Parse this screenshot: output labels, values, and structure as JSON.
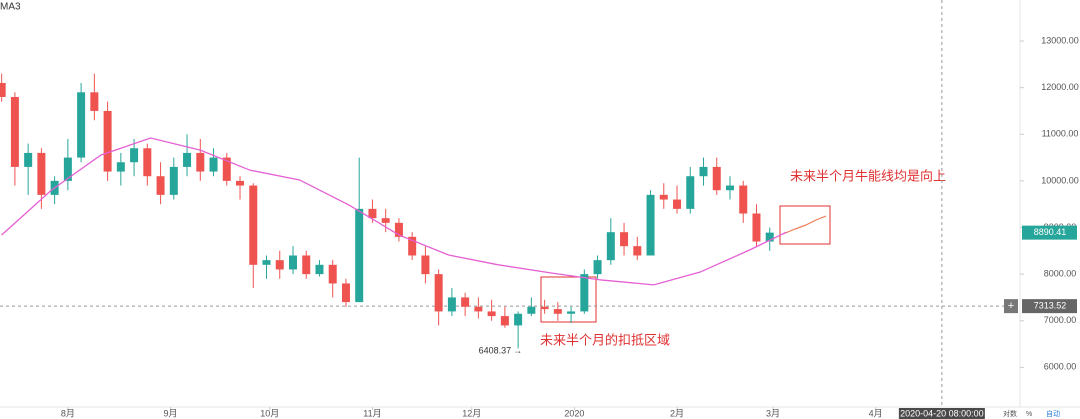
{
  "chart_data": {
    "type": "candlestick",
    "indicator": "MA3",
    "xlim": [
      -20.5,
      287.6
    ],
    "ylim": [
      5150,
      13880
    ],
    "xticks": [
      {
        "value": 0,
        "label": "8月"
      },
      {
        "value": 31,
        "label": "9月"
      },
      {
        "value": 61,
        "label": "10月"
      },
      {
        "value": 92,
        "label": "11月"
      },
      {
        "value": 122,
        "label": "12月"
      },
      {
        "value": 153,
        "label": "2020"
      },
      {
        "value": 184,
        "label": "2月"
      },
      {
        "value": 213,
        "label": "3月"
      },
      {
        "value": 244,
        "label": "4月"
      }
    ],
    "yticks": [
      {
        "value": 6000,
        "label": "6000.00"
      },
      {
        "value": 7000,
        "label": "7000.00"
      },
      {
        "value": 8000,
        "label": "8000.00"
      },
      {
        "value": 9000,
        "label": "9000.00"
      },
      {
        "value": 10000,
        "label": "10000.00"
      },
      {
        "value": 11000,
        "label": "11000.00"
      },
      {
        "value": 12000,
        "label": "12000.00"
      },
      {
        "value": 13000,
        "label": "13000.00"
      }
    ],
    "up_color": "#26a69a",
    "down_color": "#ef5350",
    "x": [
      -20,
      -16,
      -12,
      -8,
      -4,
      0,
      4,
      8,
      12,
      16,
      20,
      24,
      28,
      32,
      36,
      40,
      44,
      48,
      52,
      56,
      60,
      64,
      68,
      72,
      76,
      80,
      84,
      88,
      92,
      96,
      100,
      104,
      108,
      112,
      116,
      120,
      124,
      128,
      132,
      136,
      140,
      144,
      148,
      152,
      156,
      160,
      164,
      168,
      172,
      176,
      180,
      184,
      188,
      192,
      196,
      200,
      204,
      208,
      212
    ],
    "ohlc": [
      [
        12100,
        12300,
        11700,
        11800
      ],
      [
        11800,
        11900,
        9900,
        10300
      ],
      [
        10300,
        10800,
        9700,
        10600
      ],
      [
        10600,
        10700,
        9400,
        9700
      ],
      [
        9700,
        10100,
        9500,
        10000
      ],
      [
        10000,
        10900,
        9800,
        10500
      ],
      [
        10500,
        12100,
        10400,
        11900
      ],
      [
        11900,
        12300,
        11300,
        11500
      ],
      [
        11500,
        11700,
        10000,
        10200
      ],
      [
        10200,
        10600,
        9900,
        10400
      ],
      [
        10400,
        10900,
        10100,
        10700
      ],
      [
        10700,
        10800,
        9900,
        10100
      ],
      [
        10100,
        10400,
        9500,
        9700
      ],
      [
        9700,
        10500,
        9600,
        10300
      ],
      [
        10300,
        11000,
        10100,
        10600
      ],
      [
        10600,
        10900,
        10000,
        10200
      ],
      [
        10200,
        10700,
        10100,
        10500
      ],
      [
        10500,
        10600,
        9900,
        10000
      ],
      [
        10000,
        10100,
        9600,
        9900
      ],
      [
        9900,
        9950,
        7700,
        8200
      ],
      [
        8200,
        8400,
        7900,
        8300
      ],
      [
        8300,
        8500,
        7900,
        8100
      ],
      [
        8100,
        8600,
        8000,
        8400
      ],
      [
        8400,
        8500,
        7900,
        8000
      ],
      [
        8000,
        8300,
        7950,
        8200
      ],
      [
        8200,
        8300,
        7500,
        7800
      ],
      [
        7800,
        7900,
        7300,
        7400
      ],
      [
        7400,
        10500,
        7400,
        9400
      ],
      [
        9400,
        9600,
        9100,
        9200
      ],
      [
        9200,
        9400,
        8900,
        9100
      ],
      [
        9100,
        9200,
        8700,
        8800
      ],
      [
        8800,
        8900,
        8300,
        8400
      ],
      [
        8400,
        8600,
        7800,
        8000
      ],
      [
        8000,
        8100,
        6900,
        7200
      ],
      [
        7200,
        7700,
        7100,
        7500
      ],
      [
        7500,
        7600,
        7100,
        7300
      ],
      [
        7300,
        7500,
        7050,
        7200
      ],
      [
        7200,
        7450,
        7000,
        7100
      ],
      [
        7100,
        7300,
        6850,
        6900
      ],
      [
        6900,
        7200,
        6408.37,
        7150
      ],
      [
        7150,
        7500,
        7100,
        7300
      ],
      [
        7300,
        7450,
        7150,
        7250
      ],
      [
        7250,
        7400,
        7000,
        7150
      ],
      [
        7150,
        7300,
        6950,
        7200
      ],
      [
        7200,
        8100,
        7150,
        8000
      ],
      [
        8000,
        8400,
        7900,
        8300
      ],
      [
        8300,
        9200,
        8200,
        8900
      ],
      [
        8900,
        9100,
        8400,
        8600
      ],
      [
        8600,
        8800,
        8300,
        8400
      ],
      [
        8400,
        9800,
        8400,
        9700
      ],
      [
        9700,
        9950,
        9400,
        9600
      ],
      [
        9600,
        9900,
        9300,
        9400
      ],
      [
        9400,
        10300,
        9300,
        10100
      ],
      [
        10100,
        10500,
        9900,
        10300
      ],
      [
        10300,
        10500,
        9700,
        9800
      ],
      [
        9800,
        10100,
        9600,
        9900
      ],
      [
        9900,
        10000,
        9100,
        9300
      ],
      [
        9300,
        9500,
        8600,
        8700
      ],
      [
        8700,
        9000,
        8500,
        8890.41
      ]
    ],
    "ma": {
      "color": "#e55fd4",
      "x": [
        -20,
        -5,
        10,
        25,
        40,
        55,
        70,
        85,
        100,
        115,
        130,
        146,
        161,
        177,
        191,
        206,
        217
      ],
      "values": [
        8840,
        9800,
        10555,
        10920,
        10660,
        10230,
        10020,
        9480,
        8840,
        8410,
        8200,
        8025,
        7875,
        7770,
        8045,
        8520,
        8900
      ]
    },
    "crosshair": {
      "x": 264,
      "x_label": "2020-04-20 08:00:00",
      "y": 7313.52
    },
    "annotations": [
      "未来半个月牛能线均是向上",
      "未来半个月的扣抵区域"
    ],
    "scale_options": [
      "对数",
      "%",
      "自动"
    ]
  }
}
